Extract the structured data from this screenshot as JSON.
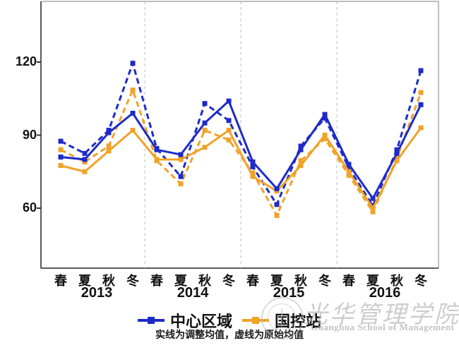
{
  "chart_data": {
    "type": "line",
    "title": "",
    "categories": [
      "春",
      "夏",
      "秋",
      "冬",
      "春",
      "夏",
      "秋",
      "冬",
      "春",
      "夏",
      "秋",
      "冬",
      "春",
      "夏",
      "秋",
      "冬"
    ],
    "years": [
      "2013",
      "2014",
      "2015",
      "2016"
    ],
    "y_ticks": [
      60,
      90,
      120
    ],
    "ylim": [
      35,
      145
    ],
    "grid": "dashed vertical separators between years",
    "legend_position": "bottom",
    "series": [
      {
        "name": "国控站",
        "variant": "原始均值",
        "line": "dashed",
        "color": "#f0a329",
        "values": [
          84,
          79,
          85.5,
          108.5,
          79.5,
          70,
          92,
          88,
          74.5,
          57,
          79.5,
          88.5,
          73.5,
          58.5,
          80.5,
          107.5
        ]
      },
      {
        "name": "中心区域",
        "variant": "原始均值",
        "line": "dashed",
        "color": "#1e2bc8",
        "values": [
          87.5,
          82.5,
          92,
          119.5,
          84.5,
          73,
          103,
          96,
          77,
          61.5,
          85.5,
          97,
          76.5,
          61,
          84,
          116.5
        ]
      },
      {
        "name": "国控站",
        "variant": "调整均值",
        "line": "solid",
        "color": "#f0a329",
        "values": [
          77.5,
          75,
          83.5,
          92,
          80,
          80,
          85,
          92,
          73,
          67,
          77.5,
          90,
          75,
          60,
          79.5,
          93
        ]
      },
      {
        "name": "中心区域",
        "variant": "调整均值",
        "line": "solid",
        "color": "#1e2bc8",
        "values": [
          81,
          80,
          91,
          99,
          84,
          82,
          95,
          104,
          79,
          68,
          84,
          98.5,
          78,
          64,
          82.5,
          102.5
        ]
      }
    ],
    "legend": [
      {
        "label": "中心区域",
        "color": "#1e2bc8"
      },
      {
        "label": "国控站",
        "color": "#f0a329"
      }
    ],
    "caption": "实线为调整均值，虚线为原始均值"
  },
  "watermark": {
    "cn": "光华管理学院",
    "en": "Guanghua School of Management"
  }
}
